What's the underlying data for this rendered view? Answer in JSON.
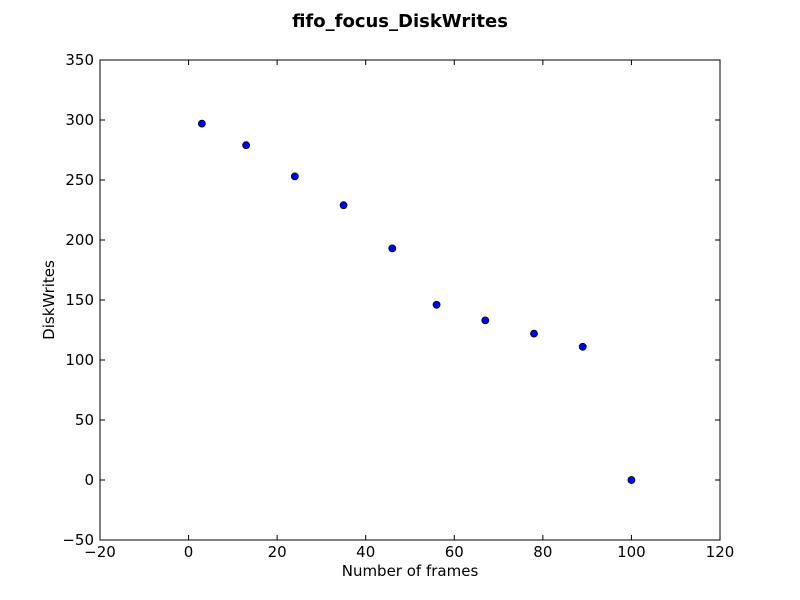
{
  "chart_data": {
    "type": "scatter",
    "title": "fifo_focus_DiskWrites",
    "xlabel": "Number of frames",
    "ylabel": "DiskWrites",
    "xlim": [
      -20,
      120
    ],
    "ylim": [
      -50,
      350
    ],
    "xticks": [
      -20,
      0,
      20,
      40,
      60,
      80,
      100,
      120
    ],
    "yticks": [
      -50,
      0,
      50,
      100,
      150,
      200,
      250,
      300,
      350
    ],
    "xtick_labels": [
      "−20",
      "0",
      "20",
      "40",
      "60",
      "80",
      "100",
      "120"
    ],
    "ytick_labels": [
      "−50",
      "0",
      "50",
      "100",
      "150",
      "200",
      "250",
      "300",
      "350"
    ],
    "grid": false,
    "marker_color": "#0000ff",
    "series": [
      {
        "x": [
          3,
          13,
          24,
          35,
          46,
          56,
          67,
          78,
          89,
          100
        ],
        "y": [
          297,
          279,
          253,
          229,
          193,
          146,
          133,
          122,
          111,
          0
        ]
      }
    ]
  }
}
